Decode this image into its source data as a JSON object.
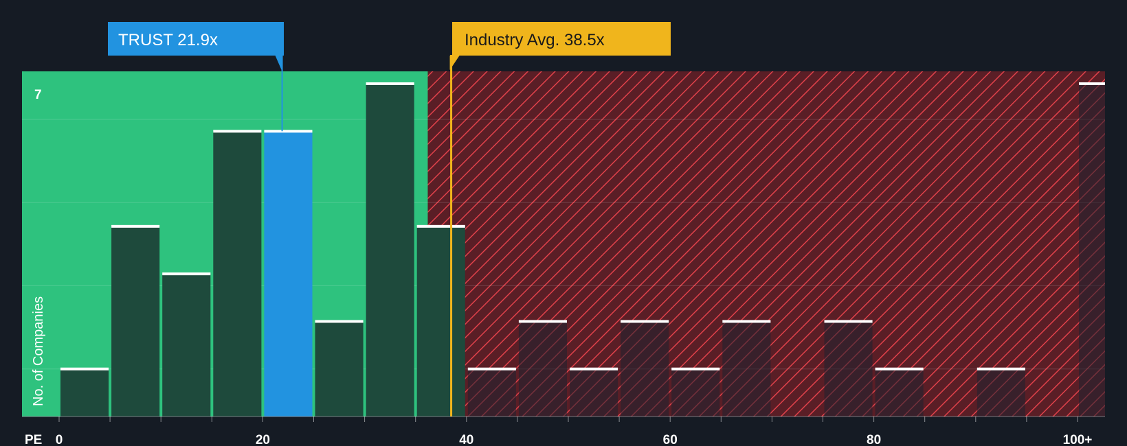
{
  "chart_data": {
    "type": "bar",
    "title": "",
    "xlabel": "PE",
    "ylabel": "No. of Companies",
    "x_tick_labels": [
      "0",
      "20",
      "40",
      "60",
      "80",
      "100+"
    ],
    "y_tick_labels": [
      "7"
    ],
    "ylim": [
      0,
      7
    ],
    "grid": true,
    "bins": [
      {
        "x_start": 0,
        "x_end": 5,
        "value": 1
      },
      {
        "x_start": 5,
        "x_end": 10,
        "value": 4
      },
      {
        "x_start": 10,
        "x_end": 15,
        "value": 3
      },
      {
        "x_start": 15,
        "x_end": 20,
        "value": 6
      },
      {
        "x_start": 20,
        "x_end": 25,
        "value": 6,
        "highlight": true
      },
      {
        "x_start": 25,
        "x_end": 30,
        "value": 2
      },
      {
        "x_start": 30,
        "x_end": 35,
        "value": 7
      },
      {
        "x_start": 35,
        "x_end": 40,
        "value": 4
      },
      {
        "x_start": 40,
        "x_end": 45,
        "value": 1
      },
      {
        "x_start": 45,
        "x_end": 50,
        "value": 2
      },
      {
        "x_start": 50,
        "x_end": 55,
        "value": 1
      },
      {
        "x_start": 55,
        "x_end": 60,
        "value": 2
      },
      {
        "x_start": 60,
        "x_end": 65,
        "value": 1
      },
      {
        "x_start": 65,
        "x_end": 70,
        "value": 2
      },
      {
        "x_start": 70,
        "x_end": 75,
        "value": 0
      },
      {
        "x_start": 75,
        "x_end": 80,
        "value": 2
      },
      {
        "x_start": 80,
        "x_end": 85,
        "value": 1
      },
      {
        "x_start": 85,
        "x_end": 90,
        "value": 0
      },
      {
        "x_start": 90,
        "x_end": 95,
        "value": 1
      },
      {
        "x_start": 95,
        "x_end": 100,
        "value": 0
      },
      {
        "x_start": 100,
        "x_end": 105,
        "value": 7
      }
    ],
    "fair_zone_end": 36.2,
    "markers": {
      "company": {
        "label": "TRUST 21.9x",
        "value": 21.9
      },
      "industry": {
        "label": "Industry Avg. 38.5x",
        "value": 38.5
      }
    },
    "colors": {
      "background": "#151b24",
      "fair_zone": "#2ec27e",
      "expensive_zone": "#5a1e26",
      "hatch": "#e0414a",
      "bar": "#1e4a3c",
      "bar_highlight": "#2293e0",
      "bar_cap": "#ffffff",
      "company_callout": "#2293e0",
      "industry_callout": "#f0b51c"
    }
  }
}
